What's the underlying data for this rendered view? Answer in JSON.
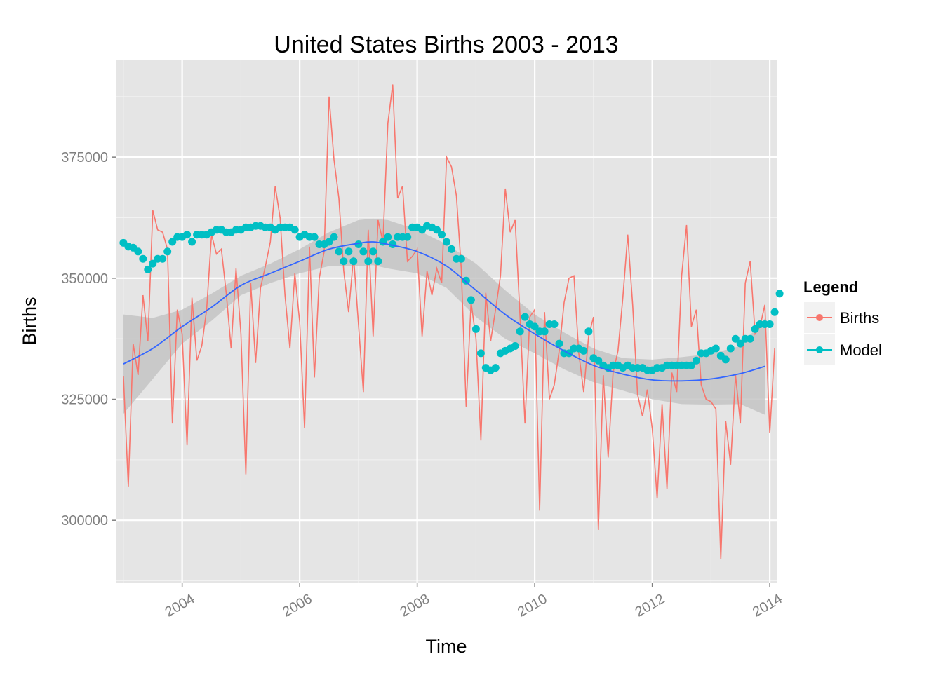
{
  "chart_data": {
    "type": "line",
    "title": "United States Births 2003 - 2013",
    "xlabel": "Time",
    "ylabel": "Births",
    "xlim": [
      2002.87,
      2014.13
    ],
    "ylim": [
      287000,
      395000
    ],
    "x_ticks": [
      2004,
      2006,
      2008,
      2010,
      2012,
      2014
    ],
    "x_tick_labels": [
      "2004",
      "2006",
      "2008",
      "2010",
      "2012",
      "2014"
    ],
    "y_ticks": [
      300000,
      325000,
      350000,
      375000
    ],
    "y_tick_labels": [
      "300000",
      "325000",
      "350000",
      "375000"
    ],
    "x_start": 2003.0,
    "x_step": 0.083333,
    "grid": true,
    "legend": {
      "title": "Legend",
      "position": "right"
    },
    "colors": {
      "births": "#f8766d",
      "model": "#00bfc4",
      "smooth": "#3366ff",
      "band": "#c2c2c2",
      "panel": "#e5e5e5",
      "grid": "#ffffff"
    },
    "series": [
      {
        "name": "Births",
        "style": "line",
        "values": [
          329800,
          307000,
          336500,
          330000,
          346500,
          337000,
          364000,
          360000,
          359500,
          356000,
          320000,
          343500,
          338500,
          315500,
          346000,
          333000,
          336000,
          343500,
          359000,
          355000,
          356000,
          347000,
          335500,
          352000,
          338500,
          309500,
          349000,
          332500,
          348000,
          352500,
          357500,
          369000,
          362500,
          346500,
          335500,
          351000,
          341000,
          319000,
          356500,
          329500,
          350000,
          355500,
          387500,
          374500,
          366500,
          351500,
          343000,
          354500,
          340500,
          326500,
          360000,
          338000,
          362000,
          357500,
          382000,
          390000,
          366500,
          369000,
          353500,
          354500,
          356000,
          338000,
          351500,
          346500,
          352000,
          349000,
          375000,
          373000,
          367000,
          352000,
          323500,
          345000,
          337500,
          316500,
          347000,
          337000,
          343500,
          350500,
          368500,
          359500,
          362000,
          342000,
          320000,
          342000,
          343500,
          302000,
          343000,
          325000,
          328000,
          335000,
          345000,
          350000,
          350500,
          334500,
          326500,
          338000,
          342000,
          298000,
          330000,
          313000,
          330500,
          335000,
          346000,
          359000,
          344500,
          326000,
          321500,
          327000,
          319000,
          304500,
          324000,
          306500,
          330500,
          326500,
          350500,
          361000,
          340000,
          343500,
          328000,
          325000,
          324500,
          323000,
          292000,
          320500,
          311500,
          330000,
          320000,
          349000,
          353500,
          338500,
          340000,
          344500,
          318000,
          335500
        ]
      },
      {
        "name": "Model",
        "style": "points",
        "values": [
          357300,
          356500,
          356300,
          355500,
          354000,
          351800,
          353000,
          354000,
          354000,
          355500,
          357500,
          358500,
          358500,
          359000,
          357500,
          359000,
          359000,
          359000,
          359500,
          360000,
          360000,
          359500,
          359500,
          360000,
          360000,
          360500,
          360500,
          360800,
          360800,
          360500,
          360500,
          360000,
          360500,
          360500,
          360500,
          360000,
          358500,
          359000,
          358500,
          358500,
          357000,
          357000,
          357500,
          358500,
          355500,
          353500,
          355500,
          353500,
          357000,
          355500,
          353500,
          355500,
          353500,
          357500,
          358500,
          357000,
          358500,
          358500,
          358500,
          360500,
          360500,
          360000,
          360800,
          360500,
          360000,
          359000,
          357500,
          356000,
          354000,
          354000,
          349500,
          345500,
          339500,
          334500,
          331500,
          331000,
          331500,
          334500,
          335000,
          335500,
          336000,
          339000,
          342000,
          340500,
          340000,
          339000,
          339000,
          340500,
          340500,
          336500,
          334500,
          334500,
          335500,
          335500,
          335000,
          339000,
          333500,
          333000,
          332000,
          331500,
          332000,
          332000,
          331500,
          332000,
          331500,
          331500,
          331500,
          331000,
          331000,
          331500,
          331500,
          332000,
          332000,
          332000,
          332000,
          332000,
          332000,
          333000,
          334500,
          334500,
          335000,
          335500,
          334000,
          333200,
          335500,
          337500,
          336500,
          337500,
          337500,
          339500,
          340500,
          340500,
          340500,
          343000,
          346800
        ]
      },
      {
        "name": "",
        "style": "smooth",
        "x": [
          2003.0,
          2003.5,
          2004.0,
          2004.5,
          2005.0,
          2005.5,
          2006.0,
          2006.5,
          2007.0,
          2007.25,
          2007.5,
          2008.0,
          2008.5,
          2009.0,
          2009.5,
          2010.0,
          2010.5,
          2011.0,
          2011.5,
          2012.0,
          2012.5,
          2013.0,
          2013.5,
          2013.917
        ],
        "values": [
          332300,
          335500,
          340000,
          344000,
          348500,
          351000,
          353500,
          356000,
          357200,
          357500,
          357000,
          355500,
          352500,
          347500,
          342500,
          338500,
          335000,
          332000,
          330200,
          329000,
          328800,
          329200,
          330300,
          331800
        ],
        "band_upper": [
          342500,
          341800,
          343500,
          346800,
          350500,
          353000,
          356000,
          359500,
          362000,
          362300,
          362000,
          360000,
          357000,
          353000,
          347500,
          342500,
          338800,
          335500,
          333500,
          333200,
          333700,
          334400,
          336000,
          341700
        ],
        "band_lower": [
          322000,
          329200,
          336500,
          341200,
          346500,
          349000,
          351000,
          352500,
          352500,
          352700,
          352000,
          351000,
          348000,
          342000,
          337500,
          334500,
          331200,
          328500,
          326800,
          325000,
          324000,
          323900,
          324000,
          321800
        ]
      }
    ]
  }
}
